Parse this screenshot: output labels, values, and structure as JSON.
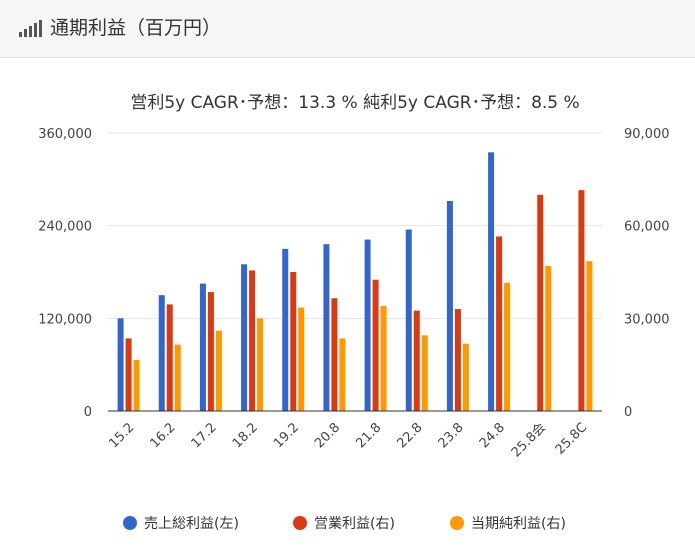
{
  "header": {
    "title": "通期利益（百万円）",
    "icon": "signal-bars-icon"
  },
  "chart_data": {
    "type": "bar",
    "title": "営利5y CAGR･予想：13.3 %  純利5y CAGR･予想：8.5 %",
    "categories": [
      "15.2",
      "16.2",
      "17.2",
      "18.2",
      "19.2",
      "20.8",
      "21.8",
      "22.8",
      "23.8",
      "24.8",
      "25.8会",
      "25.8C"
    ],
    "y_left": {
      "min": 0,
      "max": 360000,
      "ticks": [
        "0",
        "120,000",
        "240,000",
        "360,000"
      ]
    },
    "y_right": {
      "min": 0,
      "max": 90000,
      "ticks": [
        "0",
        "30,000",
        "60,000",
        "90,000"
      ]
    },
    "series": [
      {
        "name": "売上総利益(左)",
        "axis": "left",
        "color": "#3366cc",
        "values": [
          120000,
          150000,
          165000,
          190000,
          210000,
          216000,
          222000,
          235000,
          272000,
          335000,
          null,
          null
        ]
      },
      {
        "name": "営業利益(右)",
        "axis": "right",
        "color": "#dc3912",
        "values": [
          23500,
          34500,
          38500,
          45500,
          45000,
          36500,
          42500,
          32500,
          33000,
          56500,
          70000,
          71500
        ]
      },
      {
        "name": "当期純利益(右)",
        "axis": "right",
        "color": "#ff9900",
        "values": [
          16500,
          21500,
          26000,
          30000,
          33500,
          23500,
          34000,
          24500,
          21800,
          41500,
          47000,
          48500
        ]
      }
    ],
    "grid": true,
    "legend": "bottom"
  }
}
